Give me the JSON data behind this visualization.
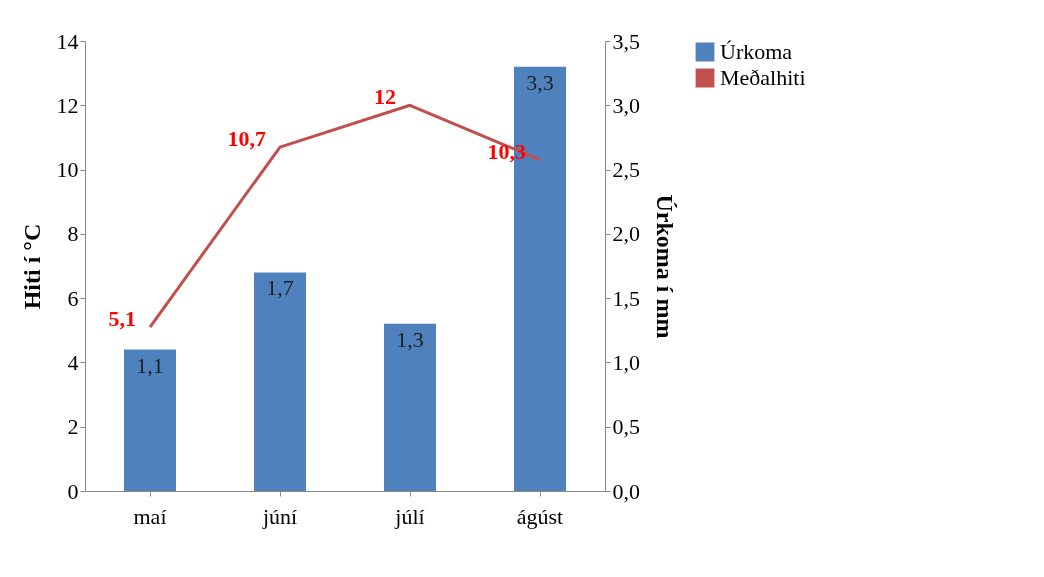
{
  "chart_data": {
    "type": "bar",
    "categories": [
      "maí",
      "júní",
      "júlí",
      "ágúst"
    ],
    "ylabel": "Hiti í °C",
    "y2label": "Úrkoma í mm",
    "ylim": [
      0,
      14
    ],
    "yticks": [
      0,
      2,
      4,
      6,
      8,
      10,
      12,
      14
    ],
    "y2lim": [
      0,
      3.5
    ],
    "y2ticks": [
      {
        "value": 0,
        "label": "0,0"
      },
      {
        "value": 0.5,
        "label": "0,5"
      },
      {
        "value": 1,
        "label": "1,0"
      },
      {
        "value": 1.5,
        "label": "1,5"
      },
      {
        "value": 2,
        "label": "2,0"
      },
      {
        "value": 2.5,
        "label": "2,5"
      },
      {
        "value": 3,
        "label": "3,0"
      },
      {
        "value": 3.5,
        "label": "3,5"
      }
    ],
    "grid": false,
    "legend": "right",
    "series": [
      {
        "name": "Úrkoma",
        "axis": "y2",
        "color": "#4f81bd",
        "values": [
          1.1,
          1.7,
          1.3,
          3.3
        ],
        "value_labels": [
          "1,1",
          "1,7",
          "1,3",
          "3,3"
        ]
      },
      {
        "name": "Meðalhiti",
        "type": "line",
        "color": "#c0504d",
        "values": [
          5.1,
          10.7,
          12,
          10.3
        ],
        "value_labels": [
          "5,1",
          "10,7",
          "12",
          "10,3"
        ]
      }
    ]
  }
}
